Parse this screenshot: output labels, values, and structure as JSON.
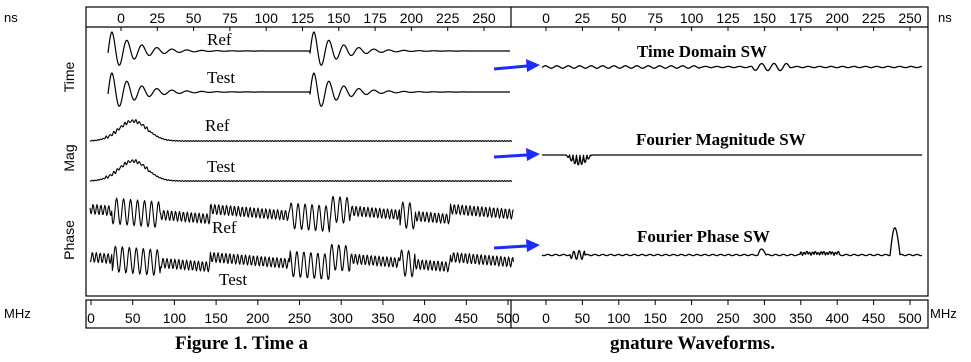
{
  "chart_data": {
    "type": "line",
    "top_axis": {
      "unit_label": "ns",
      "ticks": [
        "0",
        "25",
        "50",
        "75",
        "100",
        "125",
        "150",
        "175",
        "200",
        "225",
        "250"
      ]
    },
    "bottom_axis": {
      "unit_label": "MHz",
      "ticks": [
        "0",
        "50",
        "100",
        "150",
        "200",
        "250",
        "300",
        "350",
        "400",
        "450",
        "500"
      ]
    },
    "row_labels": [
      "Time",
      "Mag",
      "Phase"
    ],
    "left_series": [
      {
        "row": "Time",
        "name": "Ref"
      },
      {
        "row": "Time",
        "name": "Test"
      },
      {
        "row": "Mag",
        "name": "Ref"
      },
      {
        "row": "Mag",
        "name": "Test"
      },
      {
        "row": "Phase",
        "name": "Ref"
      },
      {
        "row": "Phase",
        "name": "Test"
      }
    ],
    "right_series": [
      {
        "row": "Time",
        "name": "Time Domain SW"
      },
      {
        "row": "Mag",
        "name": "Fourier Magnitude SW"
      },
      {
        "row": "Phase",
        "name": "Fourier Phase SW"
      }
    ],
    "arrow_color": "#1a2cff",
    "line_color": "#000000"
  },
  "caption": {
    "left": "Figure 1.  Time a",
    "right": "gnature Waveforms."
  }
}
